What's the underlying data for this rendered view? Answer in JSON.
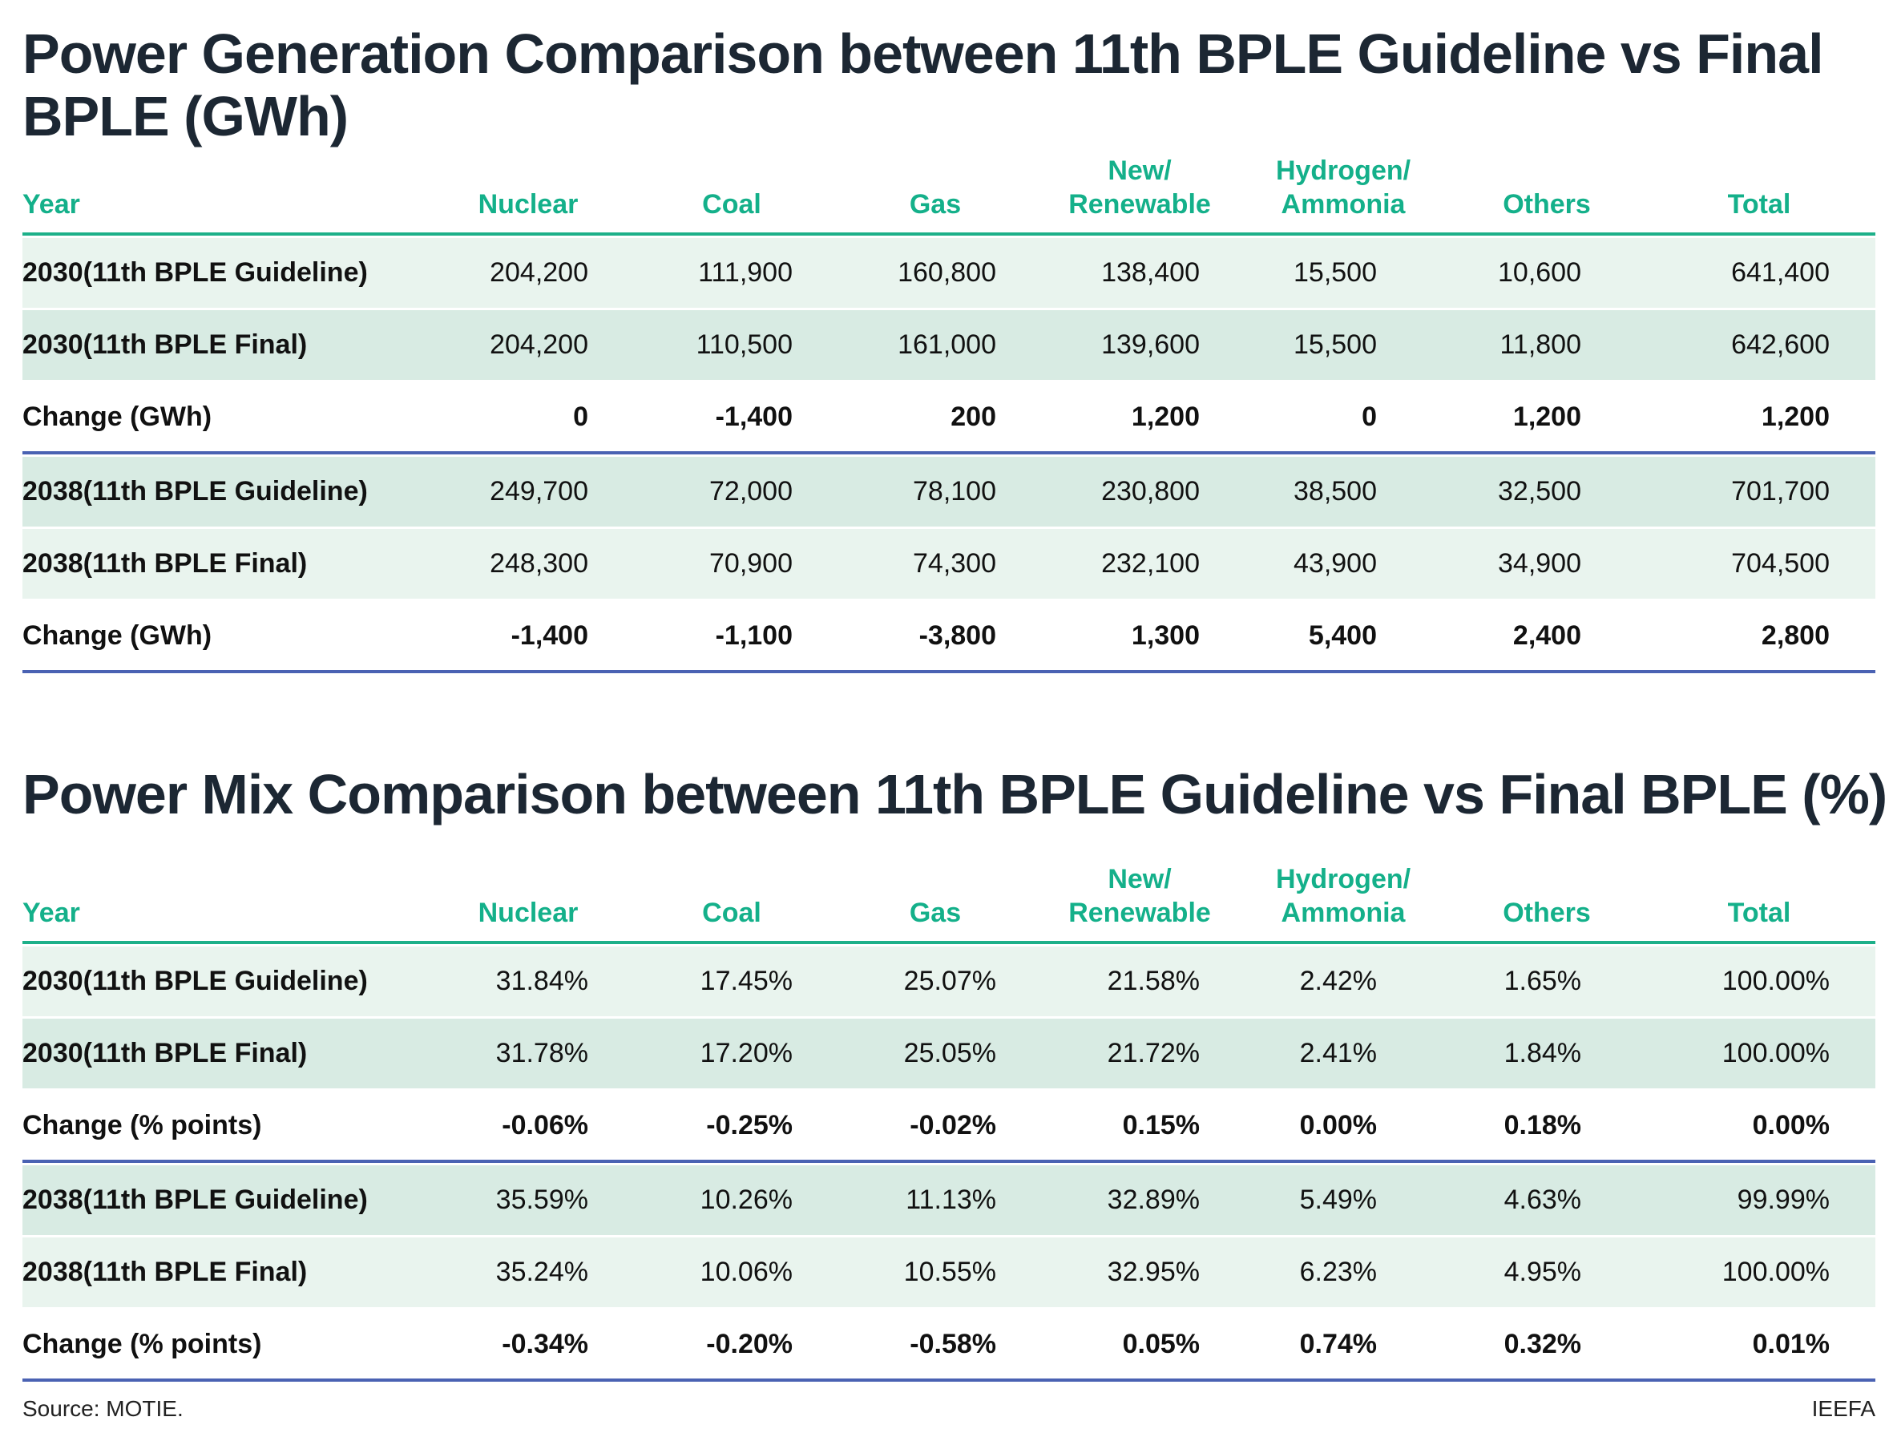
{
  "colors": {
    "accent": "#14b08a",
    "divider": "#4a62b3",
    "row_light": "#e9f4ee",
    "row_dark": "#d8ebe3"
  },
  "headers": [
    "Year",
    "Nuclear",
    "Coal",
    "Gas",
    "New/\nRenewable",
    "Hydrogen/\nAmmonia",
    "Others",
    "Total"
  ],
  "tables": [
    {
      "title": "Power Generation Comparison between 11th BPLE Guideline vs Final BPLE (GWh)",
      "rows": [
        {
          "label": "2030(11th BPLE Guideline)",
          "values": [
            "204,200",
            "111,900",
            "160,800",
            "138,400",
            "15,500",
            "10,600",
            "641,400"
          ]
        },
        {
          "label": "2030(11th BPLE Final)",
          "values": [
            "204,200",
            "110,500",
            "161,000",
            "139,600",
            "15,500",
            "11,800",
            "642,600"
          ]
        },
        {
          "label": "Change (GWh)",
          "values": [
            "0",
            "-1,400",
            "200",
            "1,200",
            "0",
            "1,200",
            "1,200"
          ]
        },
        {
          "label": "2038(11th BPLE Guideline)",
          "values": [
            "249,700",
            "72,000",
            "78,100",
            "230,800",
            "38,500",
            "32,500",
            "701,700"
          ]
        },
        {
          "label": "2038(11th BPLE Final)",
          "values": [
            "248,300",
            "70,900",
            "74,300",
            "232,100",
            "43,900",
            "34,900",
            "704,500"
          ]
        },
        {
          "label": "Change (GWh)",
          "values": [
            "-1,400",
            "-1,100",
            "-3,800",
            "1,300",
            "5,400",
            "2,400",
            "2,800"
          ]
        }
      ]
    },
    {
      "title": "Power Mix Comparison between 11th BPLE Guideline vs Final BPLE (%)",
      "rows": [
        {
          "label": "2030(11th BPLE Guideline)",
          "values": [
            "31.84%",
            "17.45%",
            "25.07%",
            "21.58%",
            "2.42%",
            "1.65%",
            "100.00%"
          ]
        },
        {
          "label": "2030(11th BPLE Final)",
          "values": [
            "31.78%",
            "17.20%",
            "25.05%",
            "21.72%",
            "2.41%",
            "1.84%",
            "100.00%"
          ]
        },
        {
          "label": "Change (% points)",
          "values": [
            "-0.06%",
            "-0.25%",
            "-0.02%",
            "0.15%",
            "0.00%",
            "0.18%",
            "0.00%"
          ]
        },
        {
          "label": "2038(11th BPLE Guideline)",
          "values": [
            "35.59%",
            "10.26%",
            "11.13%",
            "32.89%",
            "5.49%",
            "4.63%",
            "99.99%"
          ]
        },
        {
          "label": "2038(11th BPLE Final)",
          "values": [
            "35.24%",
            "10.06%",
            "10.55%",
            "32.95%",
            "6.23%",
            "4.95%",
            "100.00%"
          ]
        },
        {
          "label": "Change (% points)",
          "values": [
            "-0.34%",
            "-0.20%",
            "-0.58%",
            "0.05%",
            "0.74%",
            "0.32%",
            "0.01%"
          ]
        }
      ]
    }
  ],
  "footer": {
    "source": "Source: MOTIE.",
    "brand": "IEEFA"
  }
}
